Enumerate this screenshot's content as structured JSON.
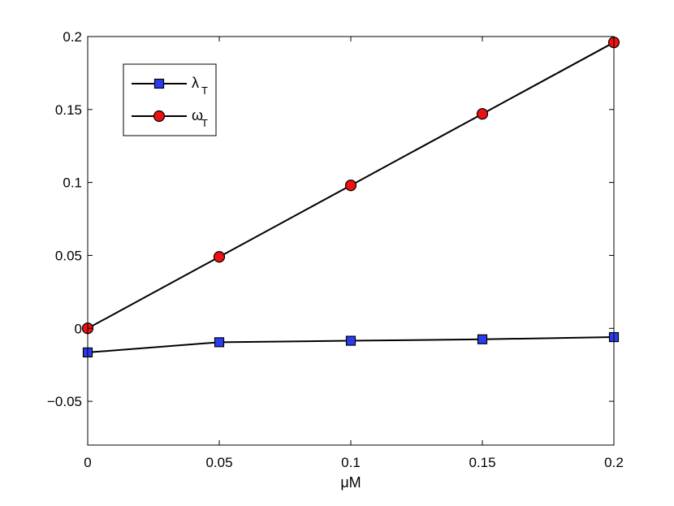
{
  "chart_data": {
    "type": "line",
    "title": "",
    "xlabel": "μM",
    "ylabel": "",
    "xlim": [
      0,
      0.2
    ],
    "ylim": [
      -0.08,
      0.2
    ],
    "x_ticks": [
      0,
      0.05,
      0.1,
      0.15,
      0.2
    ],
    "x_tick_labels": [
      "0",
      "0.05",
      "0.1",
      "0.15",
      "0.2"
    ],
    "y_ticks": [
      -0.05,
      0,
      0.05,
      0.1,
      0.15,
      0.2
    ],
    "y_tick_labels": [
      "−0.05",
      "0",
      "0.05",
      "0.1",
      "0.15",
      "0.2"
    ],
    "grid": false,
    "legend_position": "top-left",
    "x": [
      0,
      0.05,
      0.1,
      0.15,
      0.2
    ],
    "series": [
      {
        "name": "λ",
        "name_subscript": "T",
        "values": [
          -0.0165,
          -0.0095,
          -0.0085,
          -0.0075,
          -0.006
        ],
        "marker": "square",
        "line_color": "#000000",
        "marker_color": "#2b3cf0"
      },
      {
        "name": "ω",
        "name_subscript": "T",
        "values": [
          0,
          0.049,
          0.098,
          0.147,
          0.196
        ],
        "marker": "circle",
        "line_color": "#000000",
        "marker_color": "#ee1111"
      }
    ]
  }
}
